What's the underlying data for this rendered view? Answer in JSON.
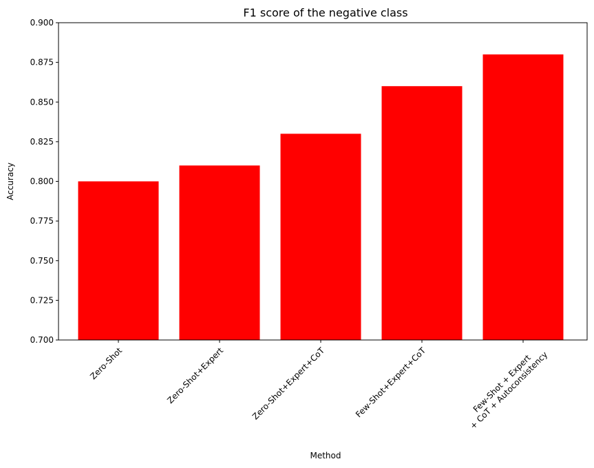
{
  "chart_data": {
    "type": "bar",
    "title": "F1 score of the negative class",
    "xlabel": "Method",
    "ylabel": "Accuracy",
    "categories": [
      [
        "Zero-Shot"
      ],
      [
        "Zero-Shot+Expert"
      ],
      [
        "Zero-Shot+Expert+CoT"
      ],
      [
        "Few-Shot+Expert+CoT"
      ],
      [
        "Few-Shot + Expert",
        "+ CoT + Autoconsistency"
      ]
    ],
    "values": [
      0.8,
      0.81,
      0.83,
      0.86,
      0.88
    ],
    "ylim": [
      0.7,
      0.9
    ],
    "yticks": [
      "0.700",
      "0.725",
      "0.750",
      "0.775",
      "0.800",
      "0.825",
      "0.850",
      "0.875",
      "0.900"
    ],
    "bar_color": "#ff0000",
    "grid": false,
    "xtick_rotation": 45
  }
}
